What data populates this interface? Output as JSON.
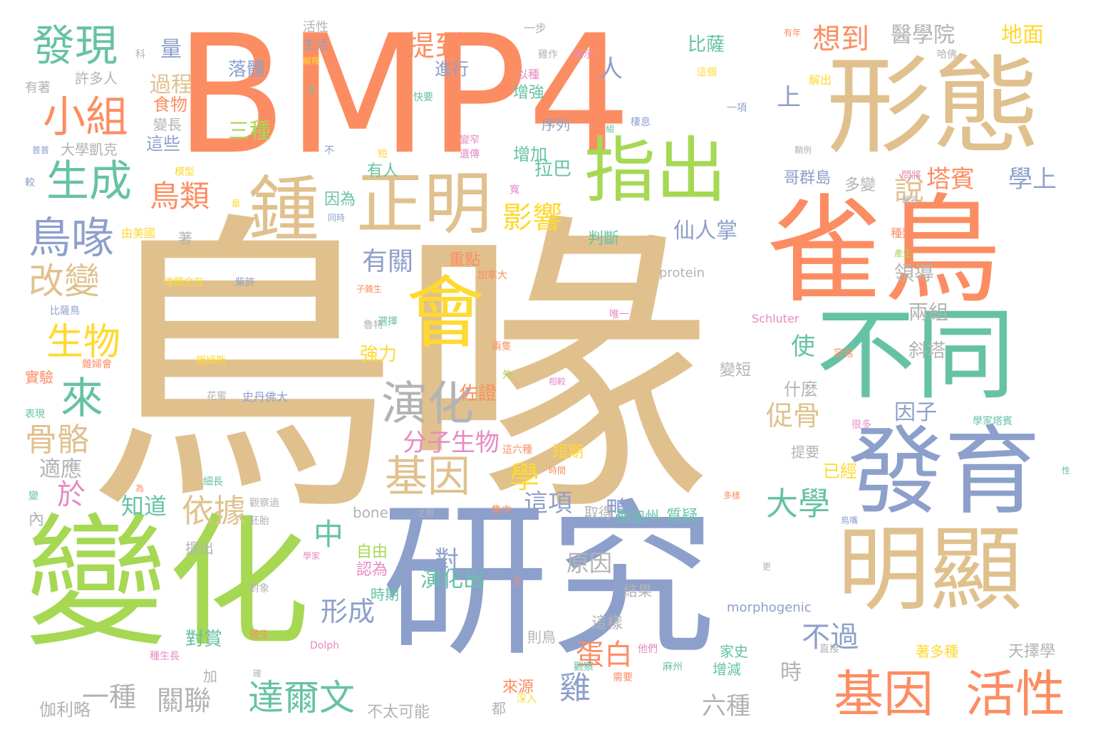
{
  "palette": {
    "tan": "#E0C18E",
    "orange": "#FC8D62",
    "green": "#A6D854",
    "teal": "#66C2A5",
    "blue": "#8DA0CB",
    "yellow": "#FFD92F",
    "pink": "#E78AC3",
    "gray": "#B3B3B3"
  },
  "words": [
    {
      "text": "鳥喙",
      "color": "tan",
      "orientation": "horizontal"
    },
    {
      "text": "BMP4",
      "color": "orange",
      "orientation": "horizontal"
    },
    {
      "text": "研究",
      "color": "blue",
      "orientation": "horizontal"
    },
    {
      "text": "變化",
      "color": "green",
      "orientation": "horizontal"
    },
    {
      "text": "雀鳥",
      "color": "orange",
      "orientation": "horizontal"
    },
    {
      "text": "形態",
      "color": "tan",
      "orientation": "horizontal"
    },
    {
      "text": "不同",
      "color": "teal",
      "orientation": "horizontal"
    },
    {
      "text": "發育",
      "color": "blue",
      "orientation": "horizontal"
    },
    {
      "text": "明顯",
      "color": "tan",
      "orientation": "horizontal"
    },
    {
      "text": "正明",
      "color": "tan",
      "orientation": "horizontal"
    },
    {
      "text": "指出",
      "color": "green",
      "orientation": "horizontal"
    },
    {
      "text": "會",
      "color": "yellow",
      "orientation": "horizontal"
    },
    {
      "text": "鍾",
      "color": "tan",
      "orientation": "horizontal"
    },
    {
      "text": "基因",
      "color": "orange",
      "orientation": "horizontal"
    },
    {
      "text": "活性",
      "color": "orange",
      "orientation": "horizontal"
    },
    {
      "text": "演化",
      "color": "gray",
      "orientation": "horizontal"
    },
    {
      "text": "基因",
      "color": "tan",
      "orientation": "horizontal"
    },
    {
      "text": "發現",
      "color": "teal",
      "orientation": "horizontal"
    },
    {
      "text": "小組",
      "color": "orange",
      "orientation": "horizontal"
    },
    {
      "text": "生成",
      "color": "teal",
      "orientation": "horizontal"
    },
    {
      "text": "鳥喙",
      "color": "blue",
      "orientation": "horizontal"
    },
    {
      "text": "改變",
      "color": "tan",
      "orientation": "horizontal"
    },
    {
      "text": "生物",
      "color": "yellow",
      "orientation": "horizontal"
    },
    {
      "text": "來",
      "color": "teal",
      "orientation": "horizontal"
    },
    {
      "text": "骨骼",
      "color": "tan",
      "orientation": "horizontal"
    },
    {
      "text": "鳥類",
      "color": "orange",
      "orientation": "horizontal"
    },
    {
      "text": "影響",
      "color": "yellow",
      "orientation": "horizontal"
    },
    {
      "text": "有關",
      "color": "blue",
      "orientation": "horizontal"
    },
    {
      "text": "提到",
      "color": "orange",
      "orientation": "horizontal"
    },
    {
      "text": "想到",
      "color": "orange",
      "orientation": "horizontal"
    },
    {
      "text": "醫學院",
      "color": "gray",
      "orientation": "horizontal"
    },
    {
      "text": "地面",
      "color": "yellow",
      "orientation": "horizontal"
    },
    {
      "text": "塔賓",
      "color": "orange",
      "orientation": "horizontal"
    },
    {
      "text": "學上",
      "color": "blue",
      "orientation": "horizontal"
    },
    {
      "text": "說",
      "color": "tan",
      "orientation": "horizontal"
    },
    {
      "text": "人",
      "color": "blue",
      "orientation": "horizontal"
    },
    {
      "text": "上",
      "color": "blue",
      "orientation": "horizontal"
    },
    {
      "text": "大學",
      "color": "teal",
      "orientation": "horizontal"
    },
    {
      "text": "中",
      "color": "teal",
      "orientation": "horizontal"
    },
    {
      "text": "於",
      "color": "pink",
      "orientation": "horizontal"
    },
    {
      "text": "學",
      "color": "yellow",
      "orientation": "horizontal"
    },
    {
      "text": "依據",
      "color": "tan",
      "orientation": "horizontal"
    },
    {
      "text": "分子生物",
      "color": "pink",
      "orientation": "horizontal"
    },
    {
      "text": "促骨",
      "color": "tan",
      "orientation": "horizontal"
    },
    {
      "text": "使",
      "color": "teal",
      "orientation": "horizontal"
    },
    {
      "text": "鴨",
      "color": "blue",
      "orientation": "horizontal"
    },
    {
      "text": "這項",
      "color": "blue",
      "orientation": "horizontal"
    },
    {
      "text": "蛋白",
      "color": "orange",
      "orientation": "horizontal"
    },
    {
      "text": "雞",
      "color": "blue",
      "orientation": "horizontal"
    },
    {
      "text": "不過",
      "color": "blue",
      "orientation": "horizontal"
    },
    {
      "text": "達爾文",
      "color": "teal",
      "orientation": "horizontal"
    },
    {
      "text": "一種",
      "color": "gray",
      "orientation": "horizontal"
    },
    {
      "text": "關聯",
      "color": "gray",
      "orientation": "horizontal"
    },
    {
      "text": "形成",
      "color": "blue",
      "orientation": "horizontal"
    },
    {
      "text": "原因",
      "color": "gray",
      "orientation": "horizontal"
    },
    {
      "text": "對",
      "color": "blue",
      "orientation": "horizontal"
    },
    {
      "text": "演化出",
      "color": "teal",
      "orientation": "horizontal"
    },
    {
      "text": "知道",
      "color": "teal",
      "orientation": "horizontal"
    },
    {
      "text": "適應",
      "color": "gray",
      "orientation": "horizontal"
    },
    {
      "text": "三種",
      "color": "green",
      "orientation": "horizontal"
    },
    {
      "text": "落體",
      "color": "blue",
      "orientation": "horizontal"
    },
    {
      "text": "過程",
      "color": "tan",
      "orientation": "horizontal"
    },
    {
      "text": "量",
      "color": "blue",
      "orientation": "horizontal"
    },
    {
      "text": "仙人掌",
      "color": "blue",
      "orientation": "horizontal"
    },
    {
      "text": "領導",
      "color": "gray",
      "orientation": "horizontal"
    },
    {
      "text": "兩組",
      "color": "gray",
      "orientation": "horizontal"
    },
    {
      "text": "斜塔",
      "color": "gray",
      "orientation": "horizontal"
    },
    {
      "text": "因子",
      "color": "blue",
      "orientation": "horizontal"
    },
    {
      "text": "什麼",
      "color": "gray",
      "orientation": "horizontal"
    },
    {
      "text": "六種",
      "color": "gray",
      "orientation": "horizontal"
    },
    {
      "text": "時",
      "color": "gray",
      "orientation": "horizontal"
    },
    {
      "text": "拉巴",
      "color": "teal",
      "orientation": "horizontal"
    },
    {
      "text": "比薩",
      "color": "teal",
      "orientation": "horizontal"
    },
    {
      "text": "哥群島",
      "color": "blue",
      "orientation": "horizontal"
    },
    {
      "text": "佐證",
      "color": "orange",
      "orientation": "horizontal"
    },
    {
      "text": "強力",
      "color": "yellow",
      "orientation": "horizontal"
    },
    {
      "text": "自由",
      "color": "green",
      "orientation": "horizontal"
    },
    {
      "text": "認為",
      "color": "pink",
      "orientation": "horizontal"
    },
    {
      "text": "短期",
      "color": "yellow",
      "orientation": "horizontal"
    },
    {
      "text": "判斷",
      "color": "teal",
      "orientation": "horizontal"
    },
    {
      "text": "重點",
      "color": "orange",
      "orientation": "horizontal"
    },
    {
      "text": "進行",
      "color": "blue",
      "orientation": "horizontal"
    },
    {
      "text": "增強",
      "color": "teal",
      "orientation": "horizontal"
    },
    {
      "text": "增加",
      "color": "teal",
      "orientation": "horizontal"
    },
    {
      "text": "序列",
      "color": "blue",
      "orientation": "horizontal"
    },
    {
      "text": "有人",
      "color": "teal",
      "orientation": "horizontal"
    },
    {
      "text": "因為",
      "color": "teal",
      "orientation": "horizontal"
    },
    {
      "text": "這些",
      "color": "blue",
      "orientation": "horizontal"
    },
    {
      "text": "食物",
      "color": "orange",
      "orientation": "horizontal"
    },
    {
      "text": "變長",
      "color": "gray",
      "orientation": "horizontal"
    },
    {
      "text": "許多人",
      "color": "gray",
      "orientation": "horizontal"
    },
    {
      "text": "有著",
      "color": "gray",
      "orientation": "horizontal"
    },
    {
      "text": "大學凱克",
      "color": "gray",
      "orientation": "horizontal"
    },
    {
      "text": "著",
      "color": "gray",
      "orientation": "horizontal"
    },
    {
      "text": "實驗",
      "color": "orange",
      "orientation": "horizontal"
    },
    {
      "text": "伽利略",
      "color": "gray",
      "orientation": "horizontal"
    },
    {
      "text": "加",
      "color": "gray",
      "orientation": "horizontal"
    },
    {
      "text": "提出",
      "color": "gray",
      "orientation": "horizontal"
    },
    {
      "text": "內",
      "color": "gray",
      "orientation": "horizontal"
    },
    {
      "text": "對賞",
      "color": "teal",
      "orientation": "horizontal"
    },
    {
      "text": "不太可能",
      "color": "gray",
      "orientation": "horizontal"
    },
    {
      "text": "都",
      "color": "gray",
      "orientation": "horizontal"
    },
    {
      "text": "來源",
      "color": "orange",
      "orientation": "horizontal"
    },
    {
      "text": "則鳥",
      "color": "gray",
      "orientation": "horizontal"
    },
    {
      "text": "這樣",
      "color": "gray",
      "orientation": "horizontal"
    },
    {
      "text": "時期",
      "color": "teal",
      "orientation": "horizontal"
    },
    {
      "text": "結果",
      "color": "gray",
      "orientation": "horizontal"
    },
    {
      "text": "取得",
      "color": "gray",
      "orientation": "horizontal"
    },
    {
      "text": "南加州",
      "color": "teal",
      "orientation": "horizontal"
    },
    {
      "text": "質疑",
      "color": "teal",
      "orientation": "horizontal"
    },
    {
      "text": "已經",
      "color": "yellow",
      "orientation": "horizontal"
    },
    {
      "text": "提要",
      "color": "gray",
      "orientation": "horizontal"
    },
    {
      "text": "天擇學",
      "color": "gray",
      "orientation": "horizontal"
    },
    {
      "text": "著多種",
      "color": "yellow",
      "orientation": "horizontal"
    },
    {
      "text": "增減",
      "color": "teal",
      "orientation": "horizontal"
    },
    {
      "text": "家史",
      "color": "teal",
      "orientation": "horizontal"
    },
    {
      "text": "變短",
      "color": "gray",
      "orientation": "horizontal"
    },
    {
      "text": "多變",
      "color": "gray",
      "orientation": "horizontal"
    },
    {
      "text": "protein",
      "color": "gray",
      "orientation": "horizontal"
    },
    {
      "text": "bone",
      "color": "gray",
      "orientation": "horizontal"
    },
    {
      "text": "morphogenic",
      "color": "blue",
      "orientation": "horizontal"
    },
    {
      "text": "Schluter",
      "color": "pink",
      "orientation": "horizontal"
    },
    {
      "text": "Dolph",
      "color": "pink",
      "orientation": "horizontal"
    },
    {
      "text": "史丹佛大",
      "color": "blue",
      "orientation": "horizontal"
    },
    {
      "text": "花蜜",
      "color": "gray",
      "orientation": "horizontal"
    },
    {
      "text": "由美國",
      "color": "yellow",
      "orientation": "horizontal"
    },
    {
      "text": "模型",
      "color": "yellow",
      "orientation": "horizontal"
    },
    {
      "text": "活性",
      "color": "gray",
      "orientation": "horizontal"
    },
    {
      "text": "生活",
      "color": "blue",
      "orientation": "horizontal"
    },
    {
      "text": "一步",
      "color": "gray",
      "orientation": "horizontal"
    },
    {
      "text": "雞作",
      "color": "gray",
      "orientation": "horizontal"
    },
    {
      "text": "以種",
      "color": "pink",
      "orientation": "horizontal"
    },
    {
      "text": "暗示",
      "color": "pink",
      "orientation": "horizontal"
    },
    {
      "text": "這個",
      "color": "yellow",
      "orientation": "horizontal"
    },
    {
      "text": "哈佛",
      "color": "gray",
      "orientation": "horizontal"
    },
    {
      "text": "解出",
      "color": "yellow",
      "orientation": "horizontal"
    },
    {
      "text": "一項",
      "color": "blue",
      "orientation": "horizontal"
    },
    {
      "text": "棲息",
      "color": "blue",
      "orientation": "horizontal"
    },
    {
      "text": "快要",
      "color": "teal",
      "orientation": "horizontal"
    },
    {
      "text": "變窄",
      "color": "pink",
      "orientation": "horizontal"
    },
    {
      "text": "遺傳",
      "color": "pink",
      "orientation": "horizontal"
    },
    {
      "text": "寬",
      "color": "pink",
      "orientation": "horizontal"
    },
    {
      "text": "短",
      "color": "yellow",
      "orientation": "horizontal"
    },
    {
      "text": "不",
      "color": "blue",
      "orientation": "horizontal"
    },
    {
      "text": "大",
      "color": "teal",
      "orientation": "horizontal"
    },
    {
      "text": "科",
      "color": "gray",
      "orientation": "horizontal"
    },
    {
      "text": "較",
      "color": "blue",
      "orientation": "horizontal"
    },
    {
      "text": "普普",
      "color": "blue",
      "orientation": "horizontal"
    },
    {
      "text": "最",
      "color": "yellow",
      "orientation": "horizontal"
    },
    {
      "text": "同時",
      "color": "blue",
      "orientation": "horizontal"
    },
    {
      "text": "種類",
      "color": "orange",
      "orientation": "horizontal"
    },
    {
      "text": "產生",
      "color": "green",
      "orientation": "horizontal"
    },
    {
      "text": "加拿大",
      "color": "orange",
      "orientation": "horizontal"
    },
    {
      "text": "唯一",
      "color": "pink",
      "orientation": "horizontal"
    },
    {
      "text": "子雜生",
      "color": "orange",
      "orientation": "horizontal"
    },
    {
      "text": "魯特",
      "color": "gray",
      "orientation": "horizontal"
    },
    {
      "text": "選擇",
      "color": "teal",
      "orientation": "horizontal"
    },
    {
      "text": "兩隻",
      "color": "orange",
      "orientation": "horizontal"
    },
    {
      "text": "外",
      "color": "green",
      "orientation": "horizontal"
    },
    {
      "text": "相較",
      "color": "pink",
      "orientation": "horizontal"
    },
    {
      "text": "容易",
      "color": "orange",
      "orientation": "horizontal"
    },
    {
      "text": "學家塔賓",
      "color": "teal",
      "orientation": "horizontal"
    },
    {
      "text": "很多",
      "color": "pink",
      "orientation": "horizontal"
    },
    {
      "text": "性",
      "color": "teal",
      "orientation": "horizontal"
    },
    {
      "text": "比薩鳥",
      "color": "blue",
      "orientation": "horizontal"
    },
    {
      "text": "達爾文在",
      "color": "yellow",
      "orientation": "horizontal"
    },
    {
      "text": "柴許",
      "color": "blue",
      "orientation": "horizontal"
    },
    {
      "text": "雜婦會",
      "color": "orange",
      "orientation": "horizontal"
    },
    {
      "text": "錫婦斯",
      "color": "yellow",
      "orientation": "horizontal"
    },
    {
      "text": "表現",
      "color": "teal",
      "orientation": "horizontal"
    },
    {
      "text": "變",
      "color": "teal",
      "orientation": "horizontal"
    },
    {
      "text": "為",
      "color": "orange",
      "orientation": "horizontal"
    },
    {
      "text": "細長",
      "color": "teal",
      "orientation": "horizontal"
    },
    {
      "text": "觀察過",
      "color": "gray",
      "orientation": "horizontal"
    },
    {
      "text": "胚胎",
      "color": "gray",
      "orientation": "horizontal"
    },
    {
      "text": "之間",
      "color": "gray",
      "orientation": "horizontal"
    },
    {
      "text": "集中",
      "color": "orange",
      "orientation": "horizontal"
    },
    {
      "text": "學家",
      "color": "pink",
      "orientation": "horizontal"
    },
    {
      "text": "多樣",
      "color": "orange",
      "orientation": "horizontal"
    },
    {
      "text": "時間",
      "color": "orange",
      "orientation": "horizontal"
    },
    {
      "text": "這六種",
      "color": "orange",
      "orientation": "horizontal"
    },
    {
      "text": "雜生",
      "color": "orange",
      "orientation": "horizontal"
    },
    {
      "text": "種生長",
      "color": "pink",
      "orientation": "horizontal"
    },
    {
      "text": "對象",
      "color": "gray",
      "orientation": "horizontal"
    },
    {
      "text": "觀察",
      "color": "teal",
      "orientation": "horizontal"
    },
    {
      "text": "需要",
      "color": "orange",
      "orientation": "horizontal"
    },
    {
      "text": "深入",
      "color": "yellow",
      "orientation": "horizontal"
    },
    {
      "text": "他們",
      "color": "pink",
      "orientation": "horizontal"
    },
    {
      "text": "麻州",
      "color": "teal",
      "orientation": "horizontal"
    },
    {
      "text": "直接",
      "color": "gray",
      "orientation": "horizontal"
    },
    {
      "text": "更",
      "color": "gray",
      "orientation": "horizontal"
    },
    {
      "text": "生",
      "color": "orange",
      "orientation": "horizontal"
    },
    {
      "text": "組",
      "color": "teal",
      "orientation": "horizontal"
    },
    {
      "text": "鞘例",
      "color": "gray",
      "orientation": "horizontal"
    },
    {
      "text": "問將",
      "color": "pink",
      "orientation": "horizontal"
    },
    {
      "text": "著名",
      "color": "gray",
      "orientation": "horizontal"
    },
    {
      "text": "有年",
      "color": "orange",
      "orientation": "horizontal"
    },
    {
      "text": "解釋",
      "color": "yellow",
      "orientation": "horizontal"
    },
    {
      "text": "確",
      "color": "gray",
      "orientation": "horizontal"
    },
    {
      "text": "鳥嘴",
      "color": "blue",
      "orientation": "horizontal"
    }
  ]
}
